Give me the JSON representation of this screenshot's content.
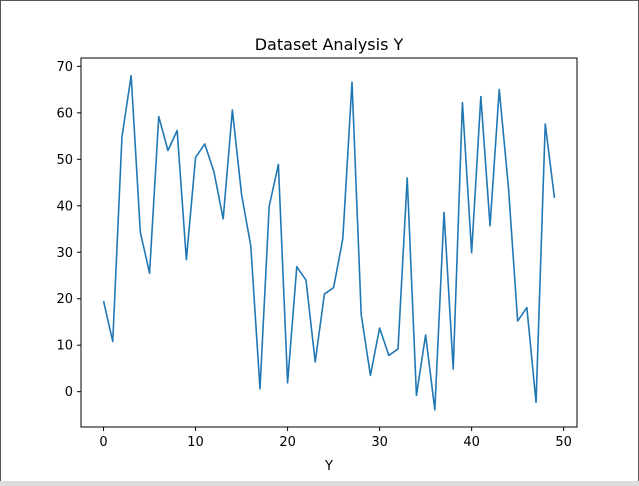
{
  "chart_data": {
    "type": "line",
    "title": "Dataset Analysis Y",
    "xlabel": "Y",
    "ylabel": "",
    "xlim": [
      -2.45,
      51.45
    ],
    "ylim": [
      -7.6,
      71.8
    ],
    "xticks": [
      0,
      10,
      20,
      30,
      40,
      50
    ],
    "yticks": [
      0,
      10,
      20,
      30,
      40,
      50,
      60,
      70
    ],
    "grid": false,
    "line_color": "#1f77b4",
    "x": [
      0,
      1,
      2,
      3,
      4,
      5,
      6,
      7,
      8,
      9,
      10,
      11,
      12,
      13,
      14,
      15,
      16,
      17,
      18,
      19,
      20,
      21,
      22,
      23,
      24,
      25,
      26,
      27,
      28,
      29,
      30,
      31,
      32,
      33,
      34,
      35,
      36,
      37,
      38,
      39,
      40,
      41,
      42,
      43,
      44,
      45,
      46,
      47,
      48,
      49
    ],
    "series": [
      {
        "values": [
          19.5,
          10.8,
          54.8,
          68.0,
          34.3,
          25.5,
          59.2,
          51.9,
          56.2,
          28.4,
          50.4,
          53.3,
          47.3,
          37.2,
          60.6,
          42.4,
          31.4,
          0.6,
          39.9,
          48.9,
          1.9,
          26.9,
          24.0,
          6.4,
          21.0,
          22.4,
          32.9,
          66.6,
          16.6,
          3.5,
          13.7,
          7.8,
          9.2,
          46.0,
          -0.8,
          12.2,
          -3.9,
          38.6,
          4.9,
          62.2,
          29.9,
          63.5,
          35.7,
          65.0,
          44.0,
          15.2,
          18.1,
          -2.3,
          57.6,
          41.7
        ]
      }
    ]
  }
}
